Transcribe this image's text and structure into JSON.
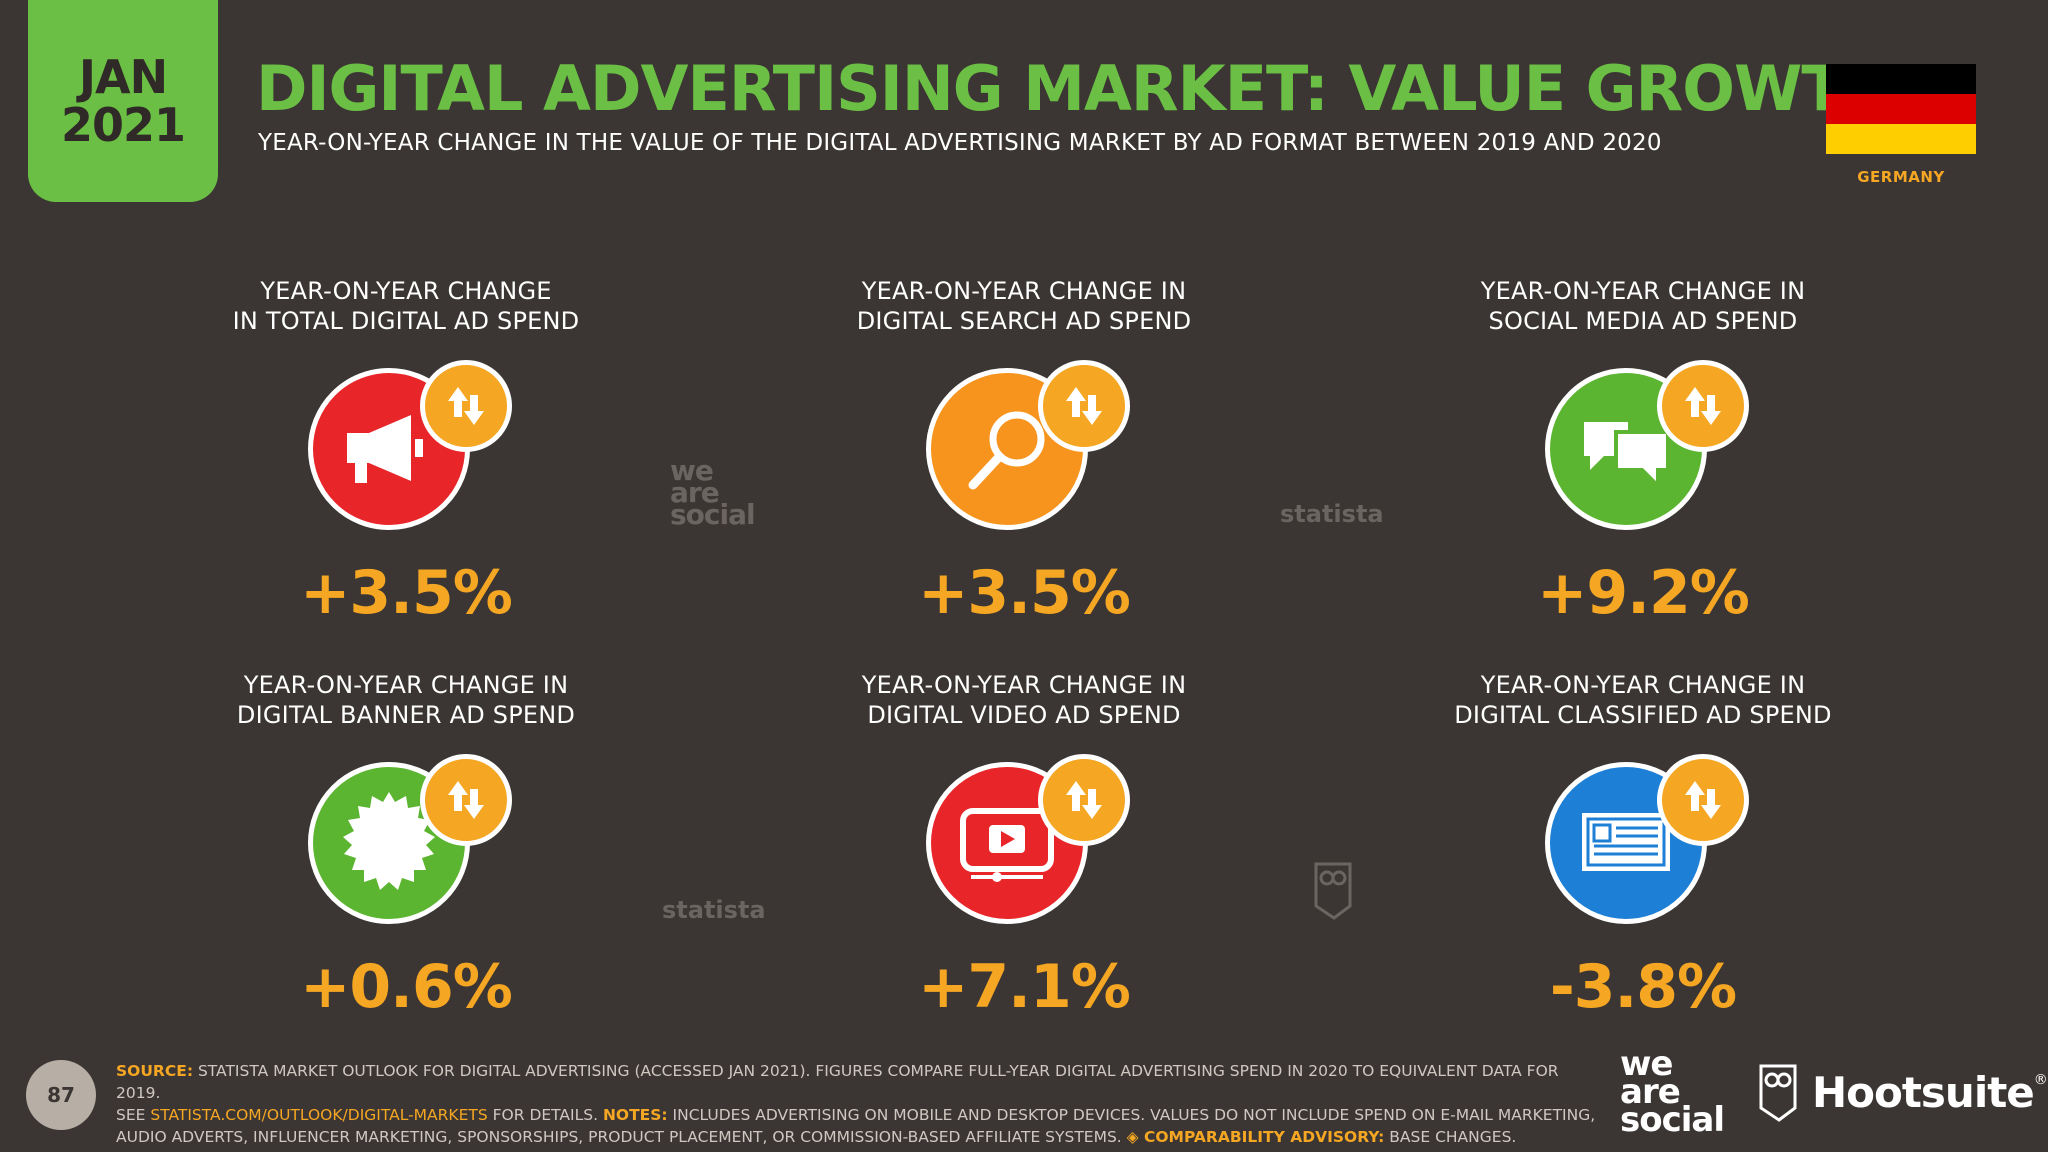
{
  "header": {
    "month": "JAN",
    "year": "2021",
    "title": "DIGITAL ADVERTISING MARKET: VALUE GROWTH",
    "subtitle": "YEAR-ON-YEAR CHANGE IN THE VALUE OF THE DIGITAL ADVERTISING MARKET BY AD FORMAT BETWEEN 2019 AND 2020",
    "country": "GERMANY"
  },
  "colors": {
    "background": "#3b3633",
    "accent_green": "#6bbf44",
    "accent_orange": "#f5a623",
    "red": "#e8262a",
    "orange": "#f7941d",
    "green": "#5cb531",
    "blue": "#1e7fd6",
    "flag_black": "#000000",
    "flag_red": "#dd0000",
    "flag_gold": "#ffce00"
  },
  "cards": [
    {
      "label_line1": "YEAR-ON-YEAR CHANGE",
      "label_line2": "IN TOTAL DIGITAL AD SPEND",
      "value": "+3.5%",
      "icon": "megaphone-icon",
      "color": "#e8262a"
    },
    {
      "label_line1": "YEAR-ON-YEAR CHANGE IN",
      "label_line2": "DIGITAL SEARCH AD SPEND",
      "value": "+3.5%",
      "icon": "magnifier-icon",
      "color": "#f7941d"
    },
    {
      "label_line1": "YEAR-ON-YEAR CHANGE IN",
      "label_line2": "SOCIAL MEDIA AD SPEND",
      "value": "+9.2%",
      "icon": "speech-bubbles-icon",
      "color": "#5cb531"
    },
    {
      "label_line1": "YEAR-ON-YEAR CHANGE IN",
      "label_line2": "DIGITAL BANNER AD SPEND",
      "value": "+0.6%",
      "icon": "seal-badge-icon",
      "color": "#5cb531"
    },
    {
      "label_line1": "YEAR-ON-YEAR CHANGE IN",
      "label_line2": "DIGITAL VIDEO AD SPEND",
      "value": "+7.1%",
      "icon": "video-player-icon",
      "color": "#e8262a"
    },
    {
      "label_line1": "YEAR-ON-YEAR CHANGE IN",
      "label_line2": "DIGITAL CLASSIFIED AD SPEND",
      "value": "-3.8%",
      "icon": "classified-ad-icon",
      "color": "#1e7fd6"
    }
  ],
  "watermarks": {
    "was": "we are social",
    "statista": "statista"
  },
  "footer": {
    "page_number": "87",
    "source_label": "SOURCE:",
    "source_text": " STATISTA MARKET OUTLOOK FOR DIGITAL ADVERTISING (ACCESSED JAN 2021). FIGURES COMPARE FULL-YEAR DIGITAL ADVERTISING SPEND IN 2020 TO EQUIVALENT DATA FOR 2019.",
    "see": "SEE ",
    "link": "STATISTA.COM/OUTLOOK/DIGITAL-MARKETS",
    "for_details": " FOR DETAILS. ",
    "notes_label": "NOTES:",
    "notes_text": " INCLUDES ADVERTISING ON MOBILE AND DESKTOP DEVICES. VALUES DO NOT INCLUDE SPEND ON E-MAIL MARKETING,",
    "notes_text2": "AUDIO ADVERTS, INFLUENCER MARKETING, SPONSORSHIPS, PRODUCT PLACEMENT, OR COMMISSION-BASED AFFILIATE SYSTEMS. ",
    "advisory_label": "◈ COMPARABILITY ADVISORY:",
    "advisory_text": " BASE CHANGES."
  },
  "logos": {
    "was_line1": "we",
    "was_line2": "are",
    "was_line3": "social",
    "hootsuite": "Hootsuite",
    "hootsuite_mark": "®"
  }
}
